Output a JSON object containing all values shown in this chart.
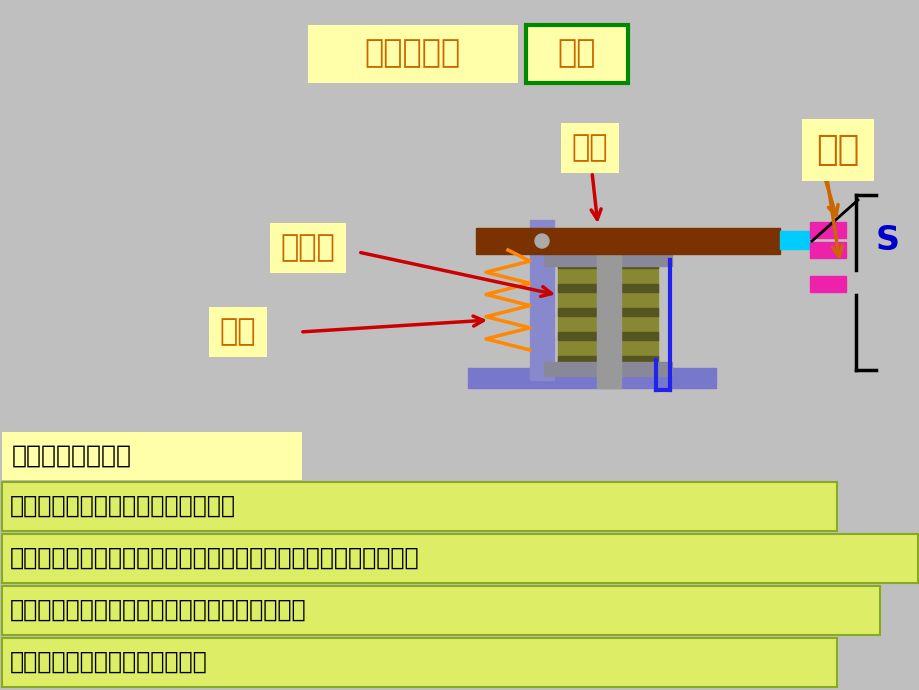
{
  "bg_color": "#c0bfbf",
  "title_text": "电磁继电器",
  "title2_text": "构造",
  "label_hantie": "衡铁",
  "label_diancitie": "电磁铁",
  "label_tanhuang": "弹簧",
  "label_chudian": "触点",
  "label_S": "S",
  "row0": "主要部分的作用：",
  "row1": "电磁铁：通电时产生磁性，吸下衡铁",
  "row2": "衡铁：和动触点组成一个绕支点转动的杠杆，带动动触点上下运动",
  "row3": "弹簧：电磁铁磁性消失时，带动衡铁弹离电磁铁",
  "row4": "触点：相当于被控制电路的开关",
  "yellow_bg": "#ffffaa",
  "green_border": "#008800",
  "text_orange": "#cc6600",
  "text_dark": "#222222",
  "lime_bg": "#ddee66"
}
